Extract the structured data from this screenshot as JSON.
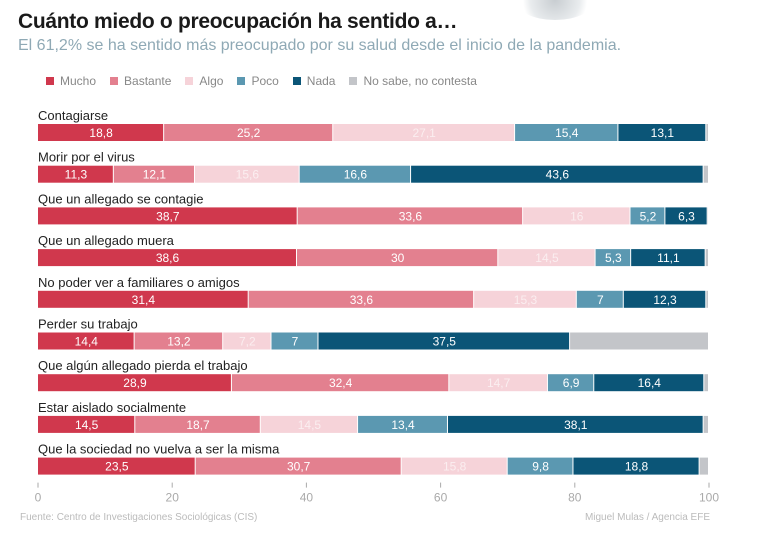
{
  "title": "Cuánto miedo o preocupación ha sentido a…",
  "subtitle": "El 61,2% se ha sentido más preocupado por su salud desde el inicio de la pandemia.",
  "footer": {
    "source": "Fuente: Centro de Investigaciones Sociológicas (CIS)",
    "credit": "Miguel Mulas / Agencia EFE"
  },
  "chart_data": {
    "type": "bar",
    "orientation": "horizontal",
    "stacked": true,
    "xlim": [
      0,
      100
    ],
    "xticks": [
      0,
      20,
      40,
      60,
      80,
      100
    ],
    "grid": false,
    "legend_position": "top-left",
    "categories": [
      "Contagiarse",
      "Morir por el virus",
      "Que un allegado se contagie",
      "Que un allegado muera",
      "No poder ver a familiares o amigos",
      "Perder su trabajo",
      "Que algún allegado pierda el trabajo",
      "Estar aislado socialmente",
      "Que la sociedad no vuelva a ser la misma"
    ],
    "series": [
      {
        "name": "Mucho",
        "color": "#d0384d",
        "labels": [
          "18,8",
          "11,3",
          "38,7",
          "38,6",
          "31,4",
          "14,4",
          "28,9",
          "14,5",
          "23,5"
        ],
        "values": [
          18.8,
          11.3,
          38.7,
          38.6,
          31.4,
          14.4,
          28.9,
          14.5,
          23.5
        ]
      },
      {
        "name": "Bastante",
        "color": "#e3808f",
        "labels": [
          "25,2",
          "12,1",
          "33,6",
          "30",
          "33,6",
          "13,2",
          "32,4",
          "18,7",
          "30,7"
        ],
        "values": [
          25.2,
          12.1,
          33.6,
          30,
          33.6,
          13.2,
          32.4,
          18.7,
          30.7
        ]
      },
      {
        "name": "Algo",
        "color": "#f6d3d9",
        "labels": [
          "27,1",
          "15,6",
          "16",
          "14,5",
          "15,3",
          "7,2",
          "14,7",
          "14,5",
          "15,8"
        ],
        "values": [
          27.1,
          15.6,
          16,
          14.5,
          15.3,
          7.2,
          14.7,
          14.5,
          15.8
        ]
      },
      {
        "name": "Poco",
        "color": "#5b98b1",
        "labels": [
          "15,4",
          "16,6",
          "5,2",
          "5,3",
          "7",
          "7",
          "6,9",
          "13,4",
          "9,8"
        ],
        "values": [
          15.4,
          16.6,
          5.2,
          5.3,
          7,
          7,
          6.9,
          13.4,
          9.8
        ]
      },
      {
        "name": "Nada",
        "color": "#0b5577",
        "labels": [
          "13,1",
          "43,6",
          "6,3",
          "11,1",
          "12,3",
          "37,5",
          "16,4",
          "38,1",
          "18,8"
        ],
        "values": [
          13.1,
          43.6,
          6.3,
          11.1,
          12.3,
          37.5,
          16.4,
          38.1,
          18.8
        ]
      },
      {
        "name": "No sabe, no contesta",
        "color": "#c3c5c9",
        "labels": [
          "",
          "",
          "",
          "",
          "",
          "",
          "",
          "",
          ""
        ],
        "values": [
          0.4,
          0.8,
          0.2,
          0.5,
          0.4,
          20.7,
          0.7,
          0.8,
          1.4
        ]
      }
    ]
  }
}
